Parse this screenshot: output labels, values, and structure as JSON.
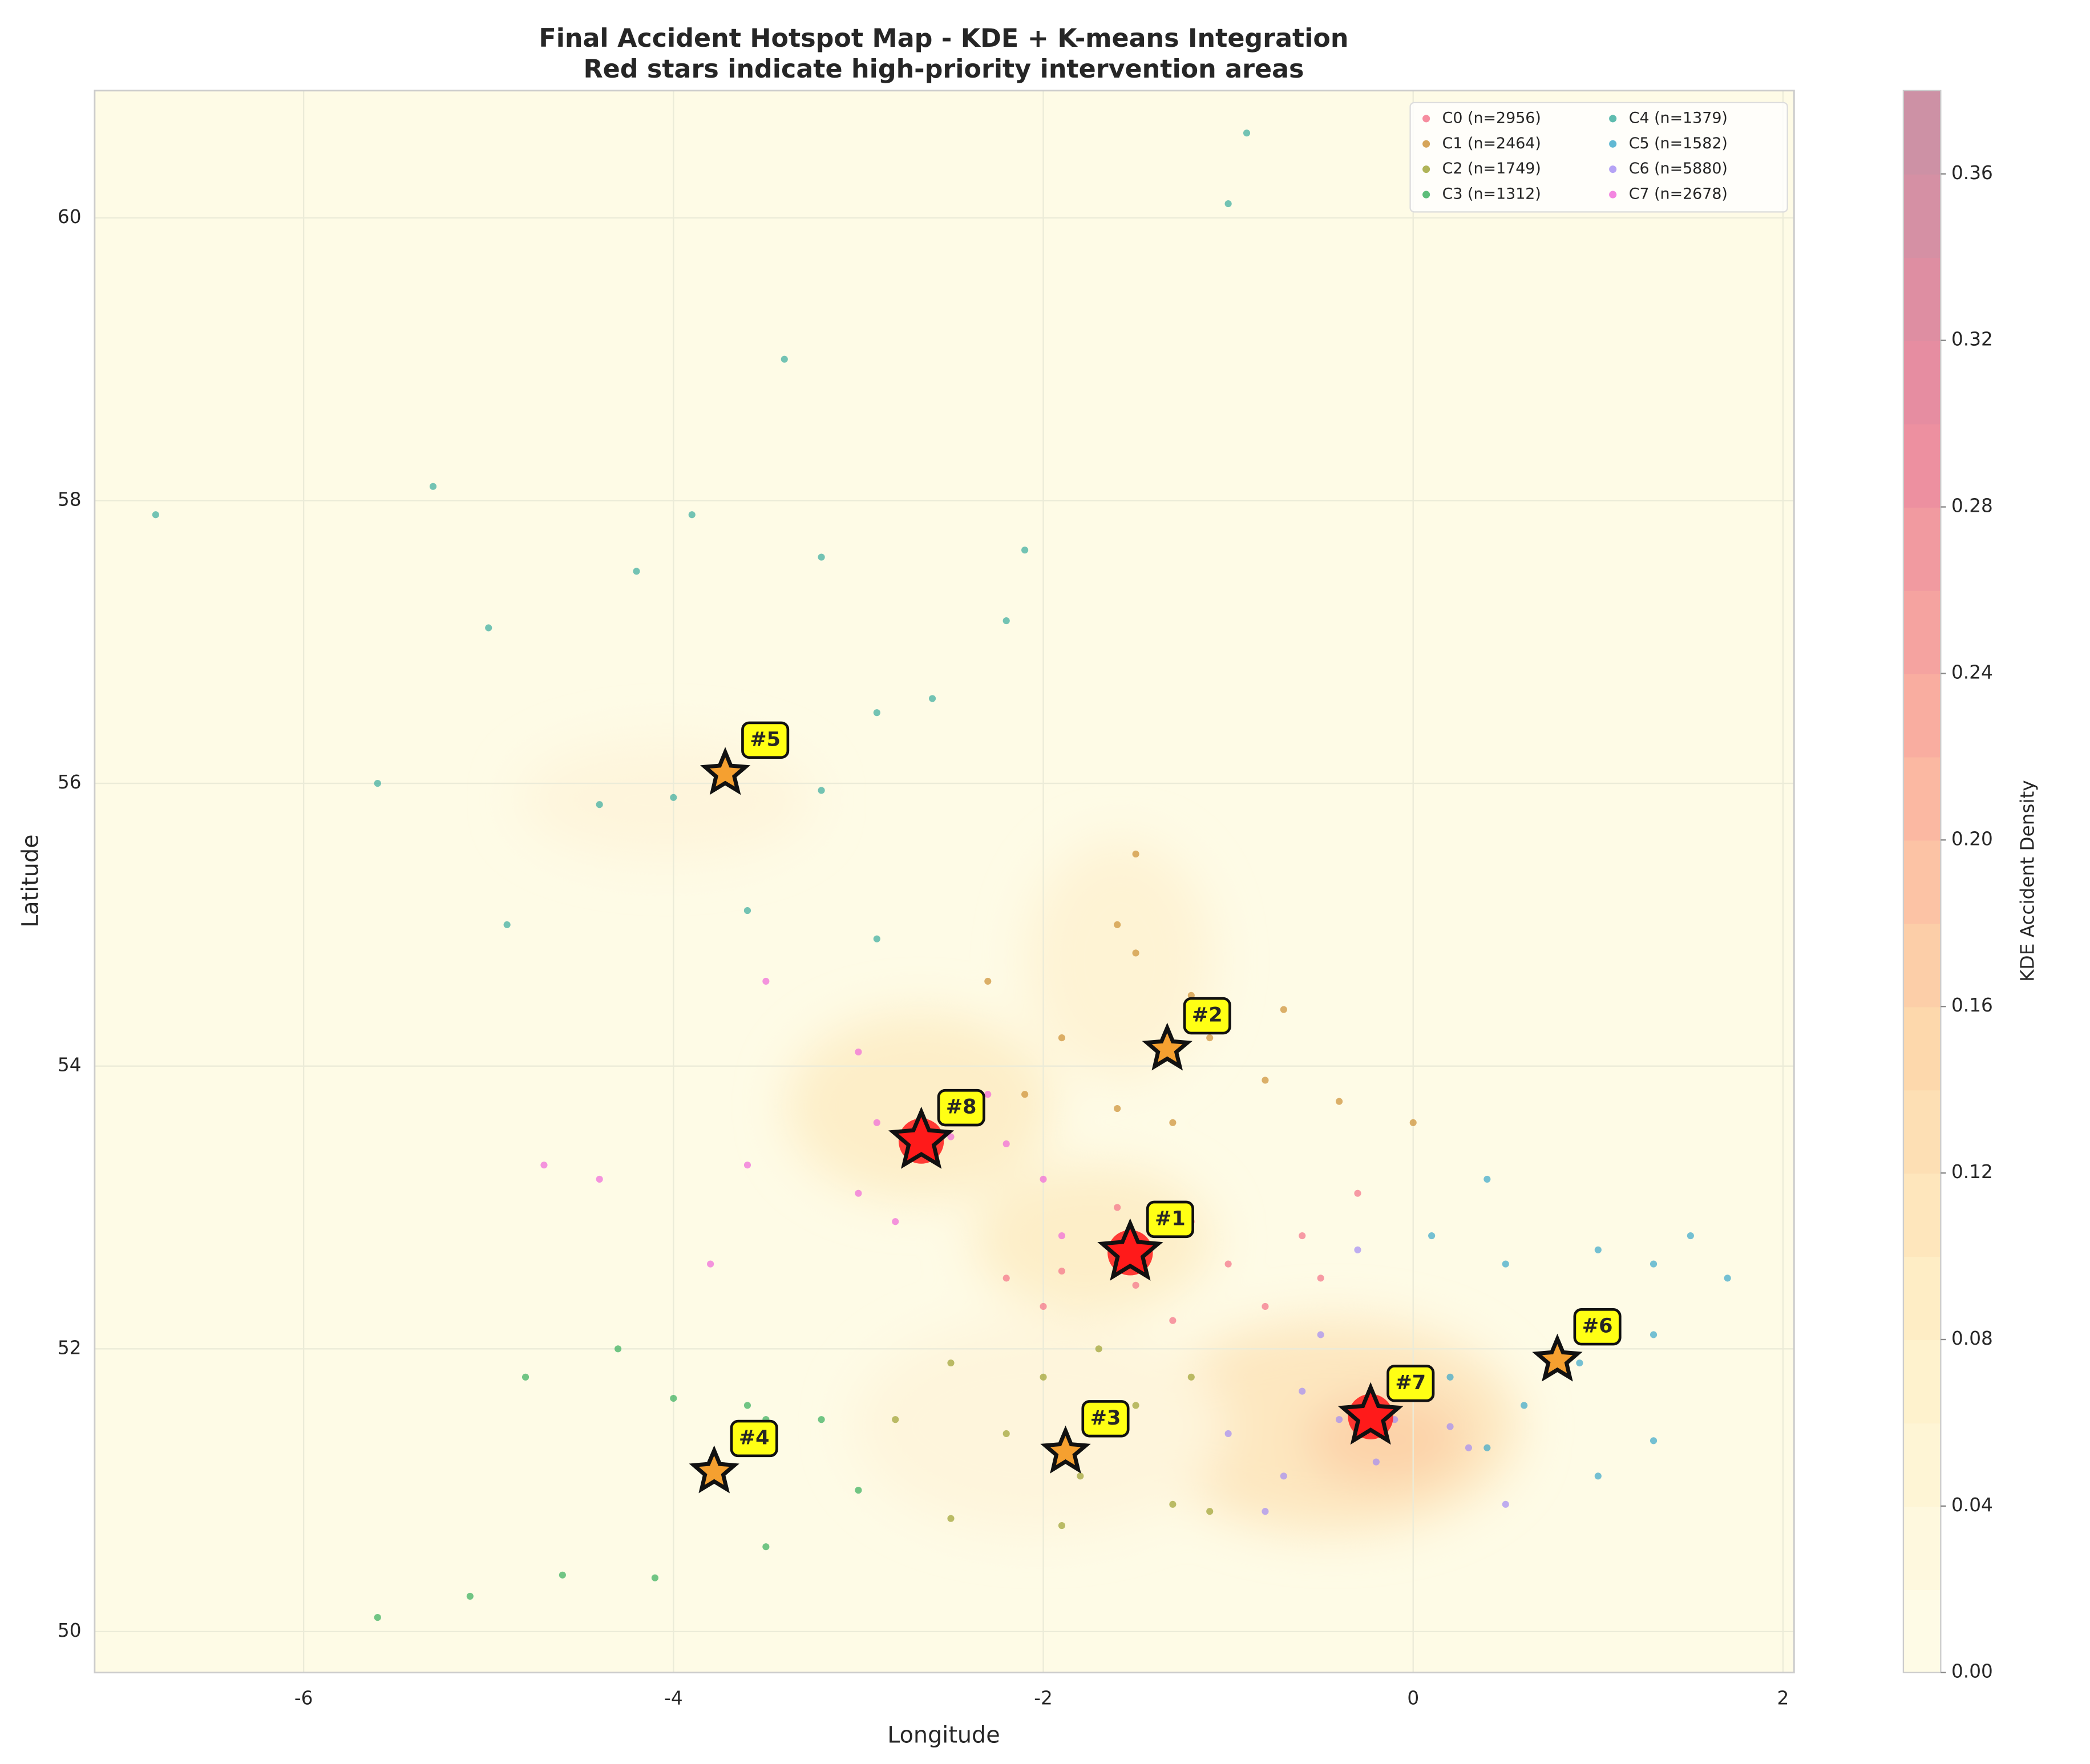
{
  "chart_data": {
    "type": "scatter",
    "title": "Final Accident Hotspot Map - KDE + K-means Integration",
    "subtitle": "Red stars indicate high-priority intervention areas",
    "x_label": "Longitude",
    "y_label": "Latitude",
    "xlim": [
      -7.13,
      2.06
    ],
    "ylim": [
      49.71,
      60.9
    ],
    "xticks": [
      -6,
      -4,
      -2,
      0,
      2
    ],
    "yticks": [
      50,
      52,
      54,
      56,
      58,
      60
    ],
    "grid": true,
    "legend": "upper right",
    "series": [
      {
        "name": "C0 (n=2956)",
        "color": "#f47088",
        "x": [
          -2.2,
          -1.9,
          -1.5,
          -1.2,
          -1.0,
          -0.6,
          -0.3,
          -1.6,
          -2.0,
          -0.8,
          -1.3,
          -0.5
        ],
        "y": [
          52.5,
          52.55,
          52.45,
          52.9,
          52.6,
          52.8,
          53.1,
          53.0,
          52.3,
          52.3,
          52.2,
          52.5
        ]
      },
      {
        "name": "C1 (n=2464)",
        "color": "#cc8f32",
        "x": [
          -1.6,
          -1.5,
          -1.2,
          -1.9,
          -2.1,
          -1.6,
          -1.3,
          -0.8,
          -0.4,
          0.0,
          -1.1,
          -0.7,
          -2.3,
          -1.5
        ],
        "y": [
          55.0,
          54.8,
          54.5,
          54.2,
          53.8,
          53.7,
          53.6,
          53.9,
          53.75,
          53.6,
          54.2,
          54.4,
          54.6,
          55.5
        ]
      },
      {
        "name": "C2 (n=1749)",
        "color": "#9ca130",
        "x": [
          -2.8,
          -2.5,
          -2.2,
          -2.0,
          -1.8,
          -1.5,
          -1.2,
          -1.3,
          -1.9,
          -2.5,
          -1.1,
          -1.7
        ],
        "y": [
          51.5,
          51.9,
          51.4,
          51.8,
          51.1,
          51.6,
          51.8,
          50.9,
          50.75,
          50.8,
          50.85,
          52.0
        ]
      },
      {
        "name": "C3 (n=1312)",
        "color": "#35ae5a",
        "x": [
          -5.6,
          -5.1,
          -4.6,
          -4.1,
          -3.5,
          -3.0,
          -3.2,
          -3.6,
          -4.0,
          -4.8,
          -4.3,
          -3.5
        ],
        "y": [
          50.1,
          50.25,
          50.4,
          50.38,
          50.6,
          51.0,
          51.5,
          51.6,
          51.65,
          51.8,
          52.0,
          51.5
        ]
      },
      {
        "name": "C4 (n=1379)",
        "color": "#37ab9c",
        "x": [
          -6.8,
          -5.3,
          -4.2,
          -3.9,
          -3.2,
          -2.2,
          -2.1,
          -5.0,
          -4.4,
          -4.0,
          -3.2,
          -2.9,
          -4.9,
          -3.6,
          -1.0,
          -0.9,
          -3.4,
          -5.6,
          -2.6,
          -2.9
        ],
        "y": [
          57.9,
          58.1,
          57.5,
          57.9,
          57.6,
          57.15,
          57.65,
          57.1,
          55.85,
          55.9,
          55.95,
          56.5,
          55.0,
          55.1,
          60.1,
          60.6,
          59.0,
          56.0,
          56.6,
          54.9
        ]
      },
      {
        "name": "C5 (n=1582)",
        "color": "#39a6c9",
        "x": [
          0.1,
          0.5,
          1.0,
          1.3,
          1.7,
          1.3,
          0.9,
          0.6,
          0.4,
          1.0,
          1.3,
          0.2,
          0.4,
          1.5
        ],
        "y": [
          52.8,
          52.6,
          52.7,
          52.6,
          52.5,
          52.1,
          51.9,
          51.6,
          51.3,
          51.1,
          51.35,
          51.8,
          53.2,
          52.8
        ]
      },
      {
        "name": "C6 (n=5880)",
        "color": "#a38cf4",
        "x": [
          -1.0,
          -0.7,
          -0.4,
          -0.1,
          0.2,
          -0.2,
          0.5,
          -0.8,
          -0.5,
          -0.3,
          0.3,
          -0.6
        ],
        "y": [
          51.4,
          51.1,
          51.5,
          51.5,
          51.45,
          51.2,
          50.9,
          50.85,
          52.1,
          52.7,
          51.3,
          51.7
        ]
      },
      {
        "name": "C7 (n=2678)",
        "color": "#f067d9",
        "x": [
          -3.5,
          -3.0,
          -2.9,
          -2.5,
          -2.2,
          -2.0,
          -3.0,
          -3.6,
          -4.4,
          -4.7,
          -3.8,
          -2.8,
          -2.3,
          -1.9
        ],
        "y": [
          54.6,
          54.1,
          53.6,
          53.5,
          53.45,
          53.2,
          53.1,
          53.3,
          53.2,
          53.3,
          52.6,
          52.9,
          53.8,
          52.8
        ]
      }
    ],
    "hotspots": [
      {
        "label": "#1",
        "x": -1.53,
        "y": 52.68,
        "color": "#ff1a1a"
      },
      {
        "label": "#2",
        "x": -1.33,
        "y": 54.12,
        "color": "#f5a030"
      },
      {
        "label": "#3",
        "x": -1.88,
        "y": 51.27,
        "color": "#f5a030"
      },
      {
        "label": "#4",
        "x": -3.78,
        "y": 51.13,
        "color": "#f5a030"
      },
      {
        "label": "#5",
        "x": -3.72,
        "y": 56.07,
        "color": "#f5a030"
      },
      {
        "label": "#6",
        "x": 0.78,
        "y": 51.92,
        "color": "#f5a030"
      },
      {
        "label": "#7",
        "x": -0.23,
        "y": 51.52,
        "color": "#ff1a1a"
      },
      {
        "label": "#8",
        "x": -2.66,
        "y": 53.47,
        "color": "#ff1a1a"
      }
    ],
    "colorbar": {
      "label": "KDE Accident Density",
      "lim": [
        0,
        0.38
      ],
      "ticks": [
        {
          "value": 0,
          "label": "0.00"
        },
        {
          "value": 0.04,
          "label": "0.04"
        },
        {
          "value": 0.08,
          "label": "0.08"
        },
        {
          "value": 0.12,
          "label": "0.12"
        },
        {
          "value": 0.16,
          "label": "0.16"
        },
        {
          "value": 0.2,
          "label": "0.20"
        },
        {
          "value": 0.24,
          "label": "0.24"
        },
        {
          "value": 0.28,
          "label": "0.28"
        },
        {
          "value": 0.32,
          "label": "0.32"
        },
        {
          "value": 0.36,
          "label": "0.36"
        }
      ]
    }
  }
}
